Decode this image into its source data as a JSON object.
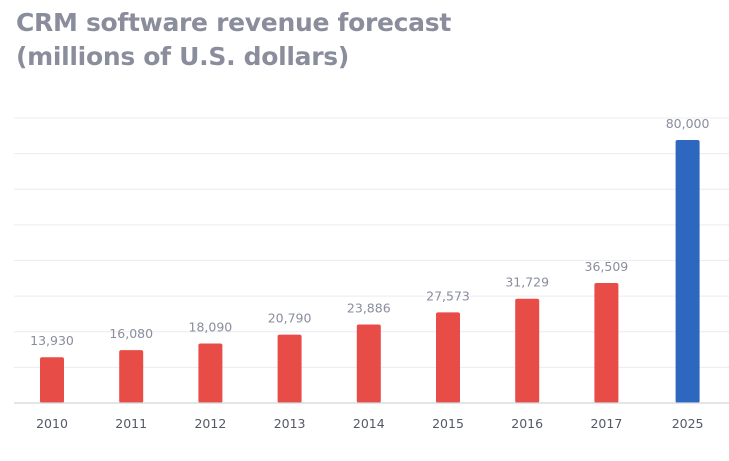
{
  "title_line1": "CRM software revenue forecast",
  "title_line2": "(millions of U.S. dollars)",
  "chart_data": {
    "type": "bar",
    "title": "CRM software revenue forecast (millions of U.S. dollars)",
    "categories": [
      "2010",
      "2011",
      "2012",
      "2013",
      "2014",
      "2015",
      "2016",
      "2017",
      "2025"
    ],
    "values": [
      13930,
      16080,
      18090,
      20790,
      23886,
      27573,
      31729,
      36509,
      80000
    ],
    "value_labels": [
      "13,930",
      "16,080",
      "18,090",
      "20,790",
      "23,886",
      "27,573",
      "31,729",
      "36,509",
      "80,000"
    ],
    "xlabel": "",
    "ylabel": "",
    "ylim": [
      0,
      80000
    ],
    "grid": true,
    "legend": "none",
    "colors": {
      "historical": "#e84c46",
      "forecast": "#2e67c0",
      "grid": "#ececf1",
      "axis": "#d3d5dc",
      "title": "#8a8d9c",
      "value_label": "#8a8d9c",
      "tick_label": "#555866"
    },
    "highlighted_categories": [
      "2025"
    ]
  }
}
